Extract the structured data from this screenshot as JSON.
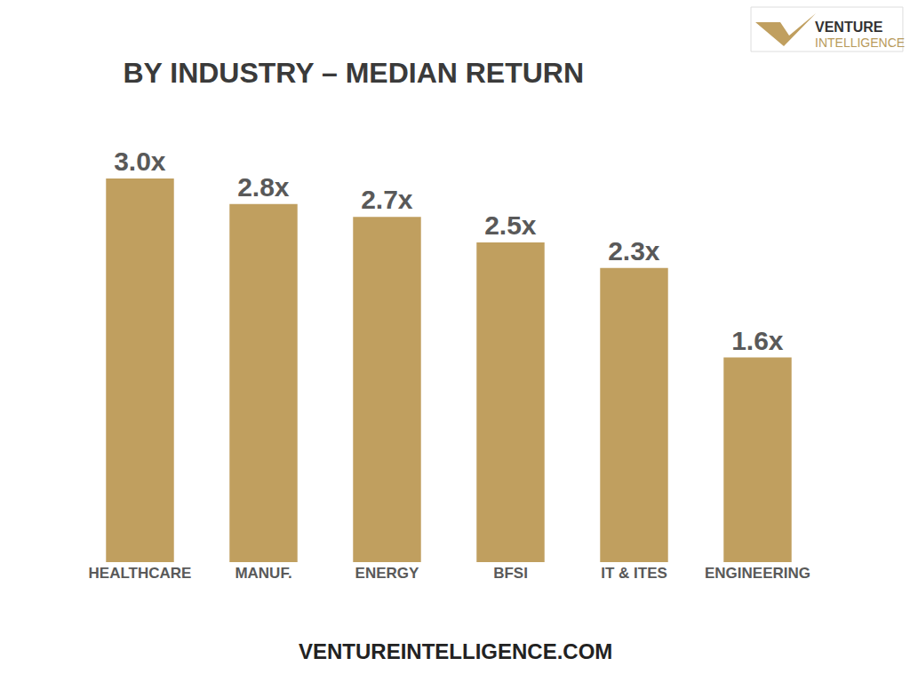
{
  "chart_data": {
    "type": "bar",
    "title": "BY INDUSTRY – MEDIAN RETURN",
    "categories": [
      "HEALTHCARE",
      "MANUF.",
      "ENERGY",
      "BFSI",
      "IT & ITES",
      "ENGINEERING"
    ],
    "values": [
      3.0,
      2.8,
      2.7,
      2.5,
      2.3,
      1.6
    ],
    "value_labels": [
      "3.0x",
      "2.8x",
      "2.7x",
      "2.5x",
      "2.3x",
      "1.6x"
    ],
    "color": "#c09f5f",
    "ylim": [
      0,
      3
    ],
    "data_labels": true,
    "tick_labels": "x",
    "grid": false,
    "annotations": [
      "VENTURE",
      "INTELLIGENCE",
      "VENTUREINTELLIGENCE.COM"
    ]
  }
}
